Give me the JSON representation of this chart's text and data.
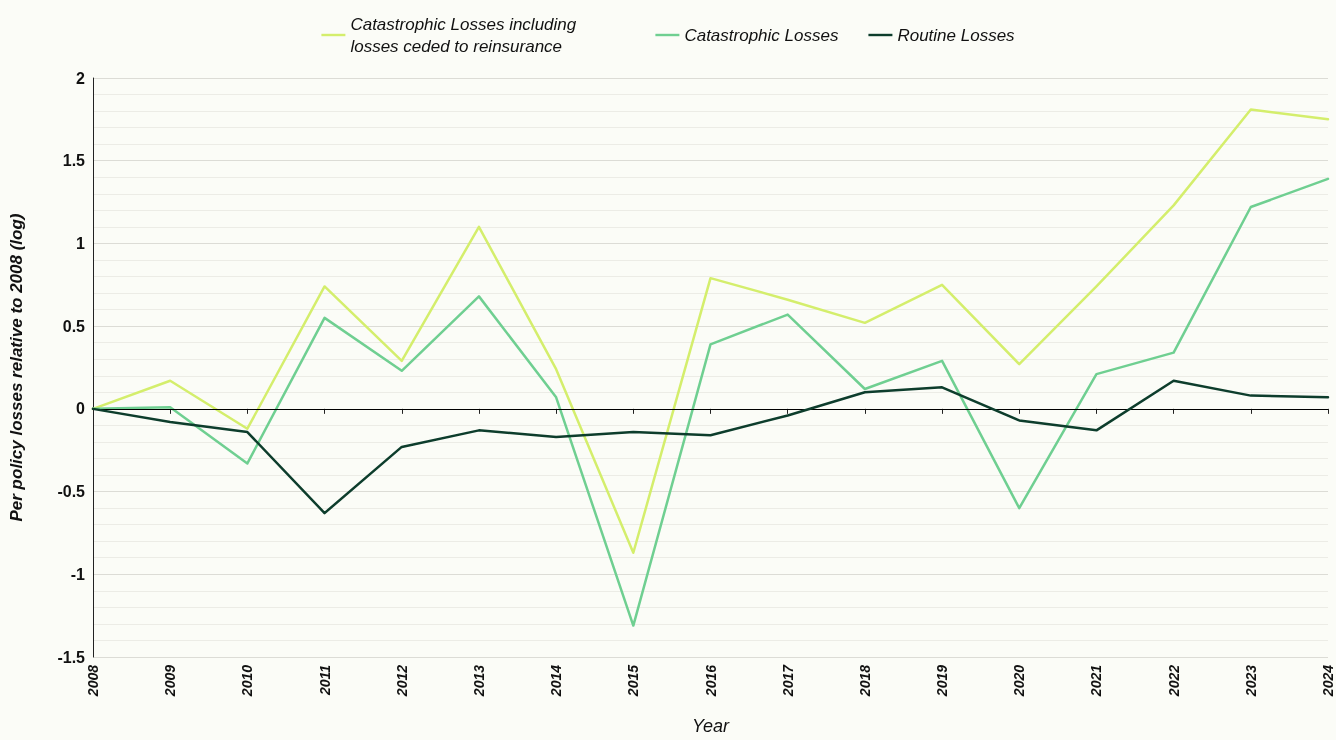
{
  "chart_data": {
    "type": "line",
    "xlabel": "Year",
    "ylabel": "Per policy losses relative to 2008 (log)",
    "categories": [
      "2008",
      "2009",
      "2010",
      "2011",
      "2012",
      "2013",
      "2014",
      "2015",
      "2016",
      "2017",
      "2018",
      "2019",
      "2020",
      "2021",
      "2022",
      "2023",
      "2024"
    ],
    "series": [
      {
        "name": "Catastrophic Losses including losses ceded to reinsurance",
        "color": "#d4ee6c",
        "values": [
          0,
          0.17,
          -0.12,
          0.74,
          0.29,
          1.1,
          0.24,
          -0.87,
          0.79,
          0.66,
          0.52,
          0.75,
          0.27,
          0.74,
          1.23,
          1.81,
          1.75
        ]
      },
      {
        "name": "Catastrophic Losses",
        "color": "#6fcf91",
        "values": [
          0,
          0.01,
          -0.33,
          0.55,
          0.23,
          0.68,
          0.07,
          -1.31,
          0.39,
          0.57,
          0.12,
          0.29,
          -0.6,
          0.21,
          0.34,
          1.22,
          1.39
        ]
      },
      {
        "name": "Routine Losses",
        "color": "#0d3d2c",
        "values": [
          0,
          -0.08,
          -0.14,
          -0.63,
          -0.23,
          -0.13,
          -0.17,
          -0.14,
          -0.16,
          -0.04,
          0.1,
          0.13,
          -0.07,
          -0.13,
          0.17,
          0.08,
          0.07
        ]
      }
    ],
    "ylim": [
      -1.5,
      2
    ],
    "yticks": [
      -1.5,
      -1,
      -0.5,
      0,
      0.5,
      1,
      1.5,
      2
    ],
    "grid": "y",
    "legend": "top",
    "marker": "none",
    "line_style": "solid",
    "ref_lines": [
      {
        "axis": "y",
        "value": 0,
        "color": "#000000"
      }
    ]
  }
}
